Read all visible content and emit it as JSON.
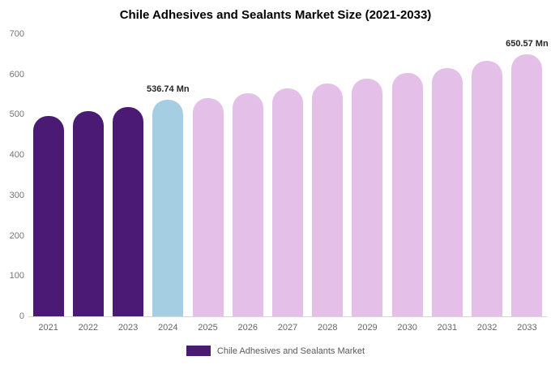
{
  "chart_data": {
    "type": "bar",
    "title": "Chile Adhesives and Sealants Market Size (2021-2033)",
    "categories": [
      "2021",
      "2022",
      "2023",
      "2024",
      "2025",
      "2026",
      "2027",
      "2028",
      "2029",
      "2030",
      "2031",
      "2032",
      "2033"
    ],
    "values": [
      497,
      508,
      519,
      536.74,
      542,
      554,
      566,
      578,
      590,
      603,
      616,
      633,
      650.57
    ],
    "unit": "Mn",
    "xlabel": "",
    "ylabel": "",
    "ylim": [
      0,
      700
    ],
    "y_ticks": [
      0,
      100,
      200,
      300,
      400,
      500,
      600,
      700
    ],
    "grid": false,
    "legend": {
      "position": "bottom",
      "label": "Chile Adhesives and Sealants Market"
    },
    "annotations": [
      {
        "category": "2024",
        "text": "536.74 Mn"
      },
      {
        "category": "2033",
        "text": "650.57 Mn"
      }
    ],
    "colors": {
      "historical": "#4a1a74",
      "highlight": "#a6cee3",
      "forecast": "#e4bfe7"
    },
    "bar_colors": [
      "historical",
      "historical",
      "historical",
      "highlight",
      "forecast",
      "forecast",
      "forecast",
      "forecast",
      "forecast",
      "forecast",
      "forecast",
      "forecast",
      "forecast"
    ]
  }
}
